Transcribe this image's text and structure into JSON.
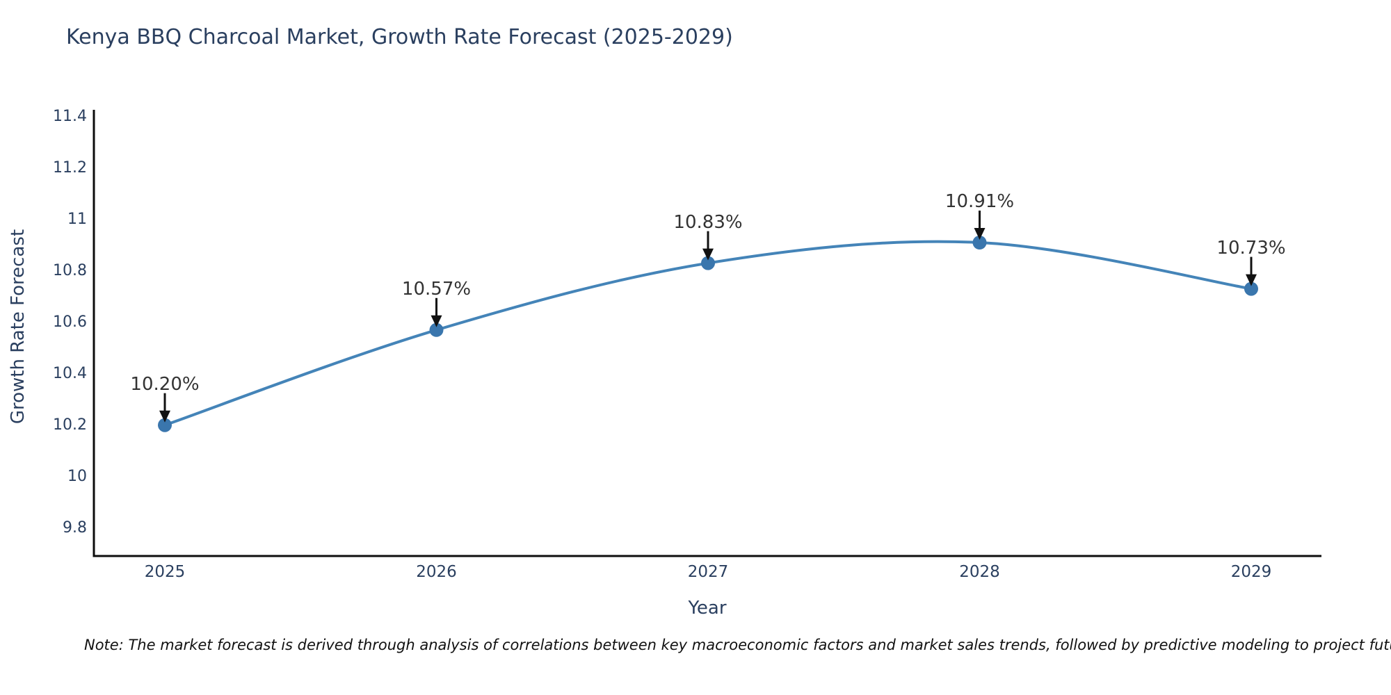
{
  "chart_data": {
    "type": "line",
    "title": "Kenya BBQ Charcoal Market, Growth Rate Forecast (2025-2029)",
    "xlabel": "Year",
    "ylabel": "Growth Rate Forecast",
    "categories": [
      "2025",
      "2026",
      "2027",
      "2028",
      "2029"
    ],
    "series": [
      {
        "name": "Growth Rate Forecast",
        "values": [
          10.2,
          10.57,
          10.83,
          10.91,
          10.73
        ]
      }
    ],
    "point_labels": [
      "10.20%",
      "10.57%",
      "10.83%",
      "10.91%",
      "10.73%"
    ],
    "y_ticks": [
      9.8,
      10,
      10.2,
      10.4,
      10.6,
      10.8,
      11,
      11.2,
      11.4
    ],
    "y_tick_labels": [
      "9.8",
      "10",
      "10.2",
      "10.4",
      "10.6",
      "10.8",
      "11",
      "11.2",
      "11.4"
    ],
    "ylim": [
      9.72,
      11.41
    ],
    "grid": false,
    "legend": false,
    "line_smoothing": "spline",
    "colors": {
      "line": "#4484b8",
      "marker": "#3a76ad",
      "arrow": "#111111",
      "axis": "#0d0d0d",
      "text": "#2a3f5f",
      "annotation_text": "#333333"
    },
    "note": "Note: The market forecast is derived through analysis of correlations between key macroeconomic factors and market sales trends, followed by predictive modeling to project future sales."
  }
}
